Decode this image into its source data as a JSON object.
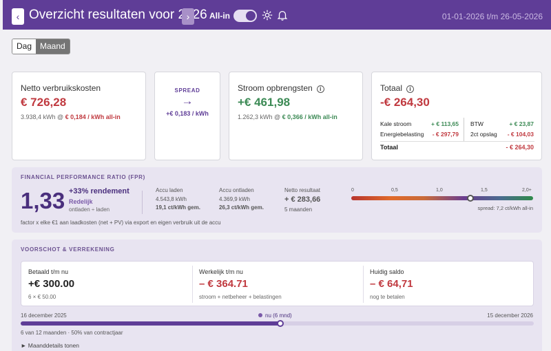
{
  "header": {
    "title": "Overzicht resultaten voor 2026",
    "prev_icon": "‹",
    "next_icon": "›",
    "allin_label": "All-in",
    "allin_on": true,
    "date_range": "01-01-2026 t/m 26-05-2026",
    "bg_color": "#5f3d97"
  },
  "view_toggle": {
    "options": [
      "Dag",
      "Maand"
    ],
    "active": "Maand"
  },
  "cards": {
    "costs": {
      "label": "Netto verbruikskosten",
      "value": "€ 726,28",
      "kwh": "3.938,4 kWh @ ",
      "rate": "€ 0,184 / kWh all-in"
    },
    "spread": {
      "label": "SPREAD",
      "arrow": "→",
      "value": "+€ 0,183 / kWh"
    },
    "revenue": {
      "label": "Stroom opbrengsten",
      "info_icon": "i",
      "value": "+€ 461,98",
      "kwh": "1.262,3 kWh @ ",
      "rate": "€ 0,366 / kWh all-in"
    },
    "total": {
      "label": "Totaal",
      "info_icon": "i",
      "value": "-€ 264,30",
      "rows": [
        {
          "label": "Kale stroom",
          "value": "+ € 113,65"
        },
        {
          "label": "Energiebelasting",
          "value": "- € 297,79"
        },
        {
          "label": "BTW",
          "value": "+ € 23,87"
        },
        {
          "label": "2ct opslag",
          "value": "- € 104,03"
        }
      ],
      "total_label": "Totaal",
      "total_value": "- € 264,30"
    }
  },
  "fpr": {
    "title": "FINANCIAL PERFORMANCE RATIO (FPR)",
    "ratio": "1,33",
    "rendement": "+33% rendement",
    "rating": "Redelijk",
    "formula": "ontladen ÷ laden",
    "stats": [
      {
        "label": "Accu laden",
        "value": "4.543,8 kWh",
        "extra": "19,1 ct/kWh gem."
      },
      {
        "label": "Accu ontladen",
        "value": "4.369,9 kWh",
        "extra": "26,3 ct/kWh gem."
      },
      {
        "label": "Netto resultaat",
        "value": "+ € 283,66",
        "extra": "5 maanden"
      }
    ],
    "scale_ticks": [
      "0",
      "0,5",
      "1,0",
      "1,5",
      "2,0+"
    ],
    "marker_value": 1.33,
    "spread_note": "spread: 7,2 ct/kWh all-in",
    "footnote": "factor x elke €1 aan laadkosten (net + PV) via export en eigen verbruik uit de accu"
  },
  "voorschot": {
    "title": "VOORSCHOT & VERREKENING",
    "columns": [
      {
        "label": "Betaald t/m nu",
        "value": "+€ 300.00",
        "sub": "6 × € 50.00"
      },
      {
        "label": "Werkelijk t/m nu",
        "value": "– € 364.71",
        "sub": "stroom + netbeheer + belastingen"
      },
      {
        "label": "Huidig saldo",
        "value": "– € 64,71",
        "sub": "nog te betalen"
      }
    ],
    "timeline": {
      "start": "16 december 2025",
      "end": "15 december 2026",
      "now_label": "nu (6 mnd)",
      "progress": 0.5,
      "foot": "6 van 12 maanden · 50% van contractjaar"
    },
    "details_link": "► Maanddetails tonen"
  }
}
